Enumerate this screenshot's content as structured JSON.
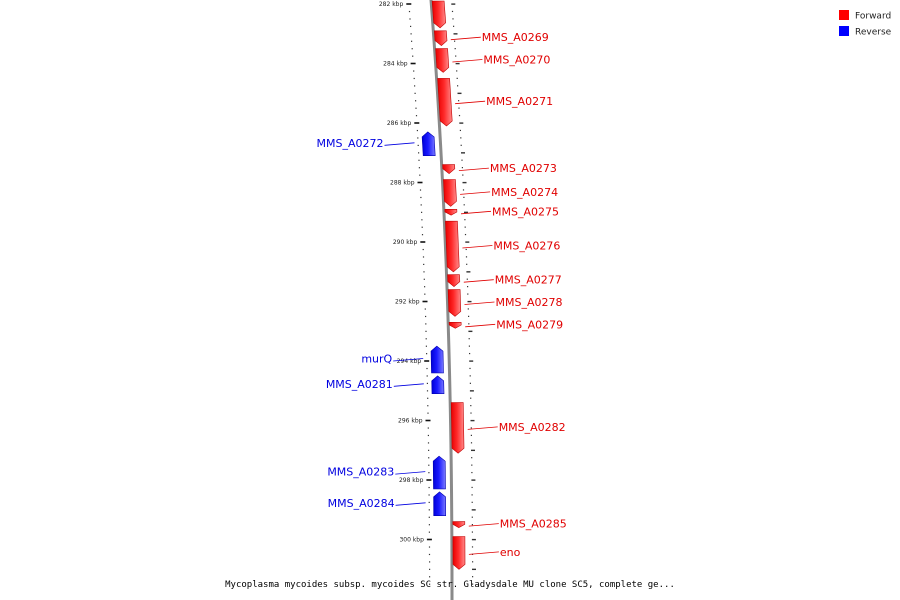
{
  "legend": [
    {
      "label": "Forward",
      "color": "#ff0000"
    },
    {
      "label": "Reverse",
      "color": "#0000ff"
    }
  ],
  "caption": "Mycoplasma mycoides subsp. mycoides SC str. Gladysdale MU clone SC5, complete ge...",
  "scale": {
    "start_kbp": 281.9,
    "end_kbp": 301.0,
    "ticks_kbp": [
      282,
      284,
      286,
      288,
      290,
      292,
      294,
      296,
      298,
      300
    ]
  },
  "tick_suffix": " kbp",
  "genes": [
    {
      "name": "",
      "strand": "forward",
      "start_kbp": 281.9,
      "end_kbp": 282.8,
      "labeled": false
    },
    {
      "name": "MMS_A0269",
      "strand": "forward",
      "start_kbp": 282.9,
      "end_kbp": 283.4,
      "labeled": true
    },
    {
      "name": "MMS_A0270",
      "strand": "forward",
      "start_kbp": 283.5,
      "end_kbp": 284.3,
      "labeled": true
    },
    {
      "name": "MMS_A0271",
      "strand": "forward",
      "start_kbp": 284.5,
      "end_kbp": 286.1,
      "labeled": true
    },
    {
      "name": "MMS_A0272",
      "strand": "reverse",
      "start_kbp": 286.3,
      "end_kbp": 287.1,
      "labeled": true
    },
    {
      "name": "MMS_A0273",
      "strand": "forward",
      "start_kbp": 287.4,
      "end_kbp": 287.7,
      "labeled": true
    },
    {
      "name": "MMS_A0274",
      "strand": "forward",
      "start_kbp": 287.9,
      "end_kbp": 288.8,
      "labeled": true
    },
    {
      "name": "MMS_A0275",
      "strand": "forward",
      "start_kbp": 288.9,
      "end_kbp": 289.1,
      "labeled": true
    },
    {
      "name": "MMS_A0276",
      "strand": "forward",
      "start_kbp": 289.3,
      "end_kbp": 291.0,
      "labeled": true
    },
    {
      "name": "MMS_A0277",
      "strand": "forward",
      "start_kbp": 291.1,
      "end_kbp": 291.5,
      "labeled": true
    },
    {
      "name": "MMS_A0278",
      "strand": "forward",
      "start_kbp": 291.6,
      "end_kbp": 292.5,
      "labeled": true
    },
    {
      "name": "MMS_A0279",
      "strand": "forward",
      "start_kbp": 292.7,
      "end_kbp": 292.9,
      "labeled": true
    },
    {
      "name": "murQ",
      "strand": "reverse",
      "start_kbp": 293.5,
      "end_kbp": 294.4,
      "labeled": true
    },
    {
      "name": "MMS_A0281",
      "strand": "reverse",
      "start_kbp": 294.5,
      "end_kbp": 295.1,
      "labeled": true
    },
    {
      "name": "MMS_A0282",
      "strand": "forward",
      "start_kbp": 295.4,
      "end_kbp": 297.1,
      "labeled": true
    },
    {
      "name": "MMS_A0283",
      "strand": "reverse",
      "start_kbp": 297.2,
      "end_kbp": 298.3,
      "labeled": true
    },
    {
      "name": "MMS_A0284",
      "strand": "reverse",
      "start_kbp": 298.4,
      "end_kbp": 299.2,
      "labeled": true
    },
    {
      "name": "MMS_A0285",
      "strand": "forward",
      "start_kbp": 299.4,
      "end_kbp": 299.6,
      "labeled": true
    },
    {
      "name": "eno",
      "strand": "forward",
      "start_kbp": 299.9,
      "end_kbp": 301.0,
      "labeled": true
    }
  ]
}
